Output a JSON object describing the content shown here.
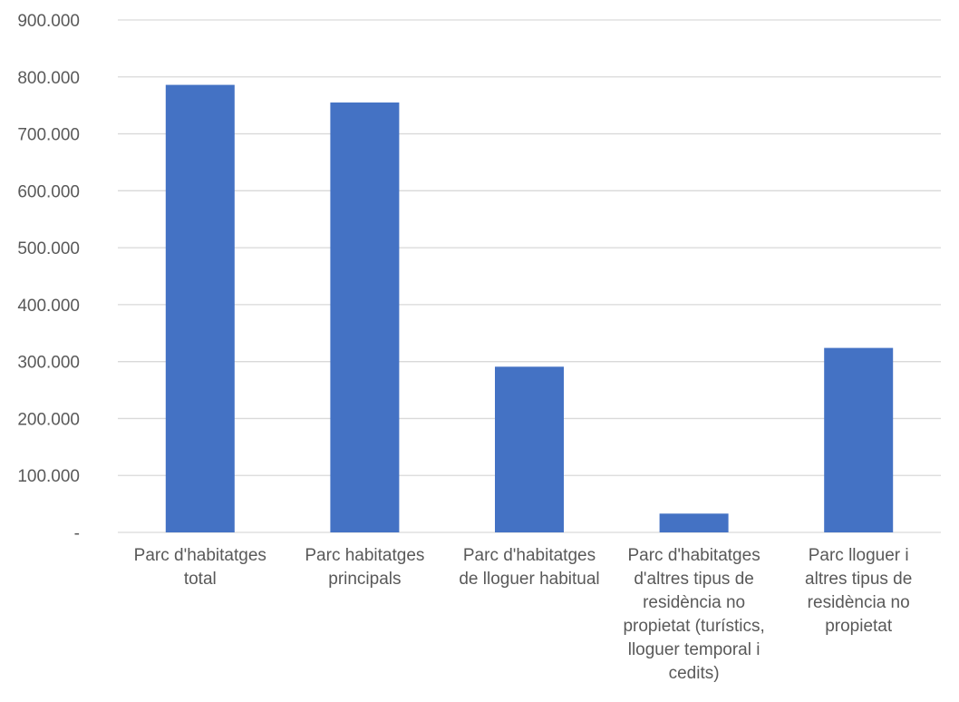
{
  "chart_data": {
    "type": "bar",
    "categories": [
      "Parc d'habitatges total",
      "Parc habitatges principals",
      "Parc d'habitatges de lloguer habitual",
      "Parc d'habitatges d'altres tipus de residència no propietat (turístics, lloguer temporal i cedits)",
      "Parc lloguer i altres tipus de residència no propietat"
    ],
    "category_lines": [
      [
        "Parc d'habitatges",
        "total"
      ],
      [
        "Parc habitatges",
        "principals"
      ],
      [
        "Parc d'habitatges",
        "de lloguer habitual"
      ],
      [
        "Parc d'habitatges",
        "d'altres tipus de",
        "residència no",
        "propietat (turístics,",
        "lloguer temporal i",
        "cedits)"
      ],
      [
        "Parc lloguer i",
        "altres tipus de",
        "residència no",
        "propietat"
      ]
    ],
    "values": [
      786000,
      755000,
      291000,
      33000,
      324000
    ],
    "ylim": [
      0,
      900000
    ],
    "yticks": [
      0,
      100000,
      200000,
      300000,
      400000,
      500000,
      600000,
      700000,
      800000,
      900000
    ],
    "ytick_labels": [
      "-",
      "100.000",
      "200.000",
      "300.000",
      "400.000",
      "500.000",
      "600.000",
      "700.000",
      "800.000",
      "900.000"
    ],
    "title": "",
    "xlabel": "",
    "ylabel": "",
    "grid": true,
    "bar_color": "#4472C4",
    "grid_color": "#D9D9D9"
  }
}
